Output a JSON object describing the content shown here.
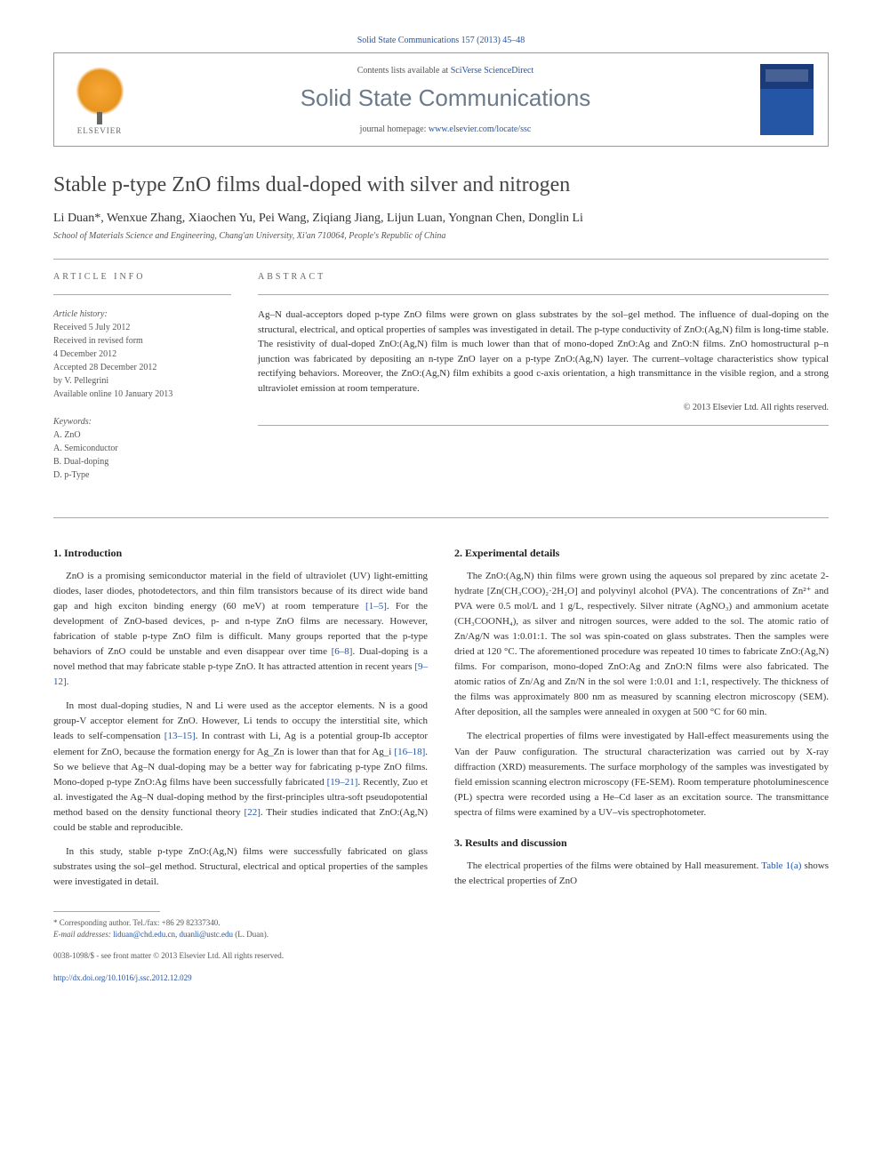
{
  "journal_ref": "Solid State Communications 157 (2013) 45–48",
  "header": {
    "publisher_name": "ELSEVIER",
    "contents_prefix": "Contents lists available at ",
    "contents_link": "SciVerse ScienceDirect",
    "journal_name": "Solid State Communications",
    "homepage_prefix": "journal homepage: ",
    "homepage_url": "www.elsevier.com/locate/ssc"
  },
  "title": "Stable p-type ZnO films dual-doped with silver and nitrogen",
  "authors": "Li Duan*, Wenxue Zhang, Xiaochen Yu, Pei Wang, Ziqiang Jiang, Lijun Luan, Yongnan Chen, Donglin Li",
  "affiliation": "School of Materials Science and Engineering, Chang'an University, Xi'an 710064, People's Republic of China",
  "article_info": {
    "heading": "ARTICLE INFO",
    "history_label": "Article history:",
    "history": [
      "Received 5 July 2012",
      "Received in revised form",
      "4 December 2012",
      "Accepted 28 December 2012",
      "by V. Pellegrini",
      "Available online 10 January 2013"
    ],
    "keywords_label": "Keywords:",
    "keywords": [
      "A. ZnO",
      "A. Semiconductor",
      "B. Dual-doping",
      "D. p-Type"
    ]
  },
  "abstract": {
    "heading": "ABSTRACT",
    "text": "Ag–N dual-acceptors doped p-type ZnO films were grown on glass substrates by the sol–gel method. The influence of dual-doping on the structural, electrical, and optical properties of samples was investigated in detail. The p-type conductivity of ZnO:(Ag,N) film is long-time stable. The resistivity of dual-doped ZnO:(Ag,N) film is much lower than that of mono-doped ZnO:Ag and ZnO:N films. ZnO homostructural p–n junction was fabricated by depositing an n-type ZnO layer on a p-type ZnO:(Ag,N) layer. The current–voltage characteristics show typical rectifying behaviors. Moreover, the ZnO:(Ag,N) film exhibits a good c-axis orientation, a high transmittance in the visible region, and a strong ultraviolet emission at room temperature.",
    "copyright": "© 2013 Elsevier Ltd. All rights reserved."
  },
  "sections": {
    "s1_heading": "1. Introduction",
    "s1_p1a": "ZnO is a promising semiconductor material in the field of ultraviolet (UV) light-emitting diodes, laser diodes, photodetectors, and thin film transistors because of its direct wide band gap and high exciton binding energy (60 meV) at room temperature ",
    "s1_p1_ref1": "[1–5]",
    "s1_p1b": ". For the development of ZnO-based devices, p- and n-type ZnO films are necessary. However, fabrication of stable p-type ZnO film is difficult. Many groups reported that the p-type behaviors of ZnO could be unstable and even disappear over time ",
    "s1_p1_ref2": "[6–8]",
    "s1_p1c": ". Dual-doping is a novel method that may fabricate stable p-type ZnO. It has attracted attention in recent years ",
    "s1_p1_ref3": "[9–12]",
    "s1_p1d": ".",
    "s1_p2a": "In most dual-doping studies, N and Li were used as the acceptor elements. N is a good group-V acceptor element for ZnO. However, Li tends to occupy the interstitial site, which leads to self-compensation ",
    "s1_p2_ref1": "[13–15]",
    "s1_p2b": ". In contrast with Li, Ag is a potential group-Ib acceptor element for ZnO, because the formation energy for Ag_Zn is lower than that for Ag_i ",
    "s1_p2_ref2": "[16–18]",
    "s1_p2c": ". So we believe that Ag–N dual-doping may be a better way for fabricating p-type ZnO films. Mono-doped p-type ZnO:Ag films have been successfully fabricated ",
    "s1_p2_ref3": "[19–21]",
    "s1_p2d": ". Recently, Zuo et al. investigated the Ag–N dual-doping method by the first-principles ultra-soft pseudopotential method based on the density functional theory ",
    "s1_p2_ref4": "[22]",
    "s1_p2e": ". Their studies indicated that ZnO:(Ag,N) could be stable and reproducible.",
    "s1_p3": "In this study, stable p-type ZnO:(Ag,N) films were successfully fabricated on glass substrates using the sol–gel method. Structural, electrical and optical properties of the samples were investigated in detail.",
    "s2_heading": "2. Experimental details",
    "s2_p1": "The ZnO:(Ag,N) thin films were grown using the aqueous sol prepared by zinc acetate 2-hydrate [Zn(CH₃COO)₂·2H₂O] and polyvinyl alcohol (PVA). The concentrations of Zn²⁺ and PVA were 0.5 mol/L and 1 g/L, respectively. Silver nitrate (AgNO₃) and ammonium acetate (CH₃COONH₄), as silver and nitrogen sources, were added to the sol. The atomic ratio of Zn/Ag/N was 1:0.01:1. The sol was spin-coated on glass substrates. Then the samples were dried at 120 °C. The aforementioned procedure was repeated 10 times to fabricate ZnO:(Ag,N) films. For comparison, mono-doped ZnO:Ag and ZnO:N films were also fabricated. The atomic ratios of Zn/Ag and Zn/N in the sol were 1:0.01 and 1:1, respectively. The thickness of the films was approximately 800 nm as measured by scanning electron microscopy (SEM). After deposition, all the samples were annealed in oxygen at 500 °C for 60 min.",
    "s2_p2": "The electrical properties of films were investigated by Hall-effect measurements using the Van der Pauw configuration. The structural characterization was carried out by X-ray diffraction (XRD) measurements. The surface morphology of the samples was investigated by field emission scanning electron microscopy (FE-SEM). Room temperature photoluminescence (PL) spectra were recorded using a He–Cd laser as an excitation source. The transmittance spectra of films were examined by a UV–vis spectrophotometer.",
    "s3_heading": "3. Results and discussion",
    "s3_p1a": "The electrical properties of the films were obtained by Hall measurement. ",
    "s3_p1_ref": "Table 1(a)",
    "s3_p1b": " shows the electrical properties of ZnO"
  },
  "footnote": {
    "corr": "* Corresponding author. Tel./fax: +86 29 82337340.",
    "email_label": "E-mail addresses: ",
    "email1": "liduan@chd.edu.cn",
    "email_sep": ", ",
    "email2": "duanli@ustc.edu",
    "email_who": " (L. Duan)."
  },
  "footer": {
    "issn": "0038-1098/$ - see front matter © 2013 Elsevier Ltd. All rights reserved.",
    "doi_prefix": "http://dx.doi.org/",
    "doi": "10.1016/j.ssc.2012.12.029"
  }
}
